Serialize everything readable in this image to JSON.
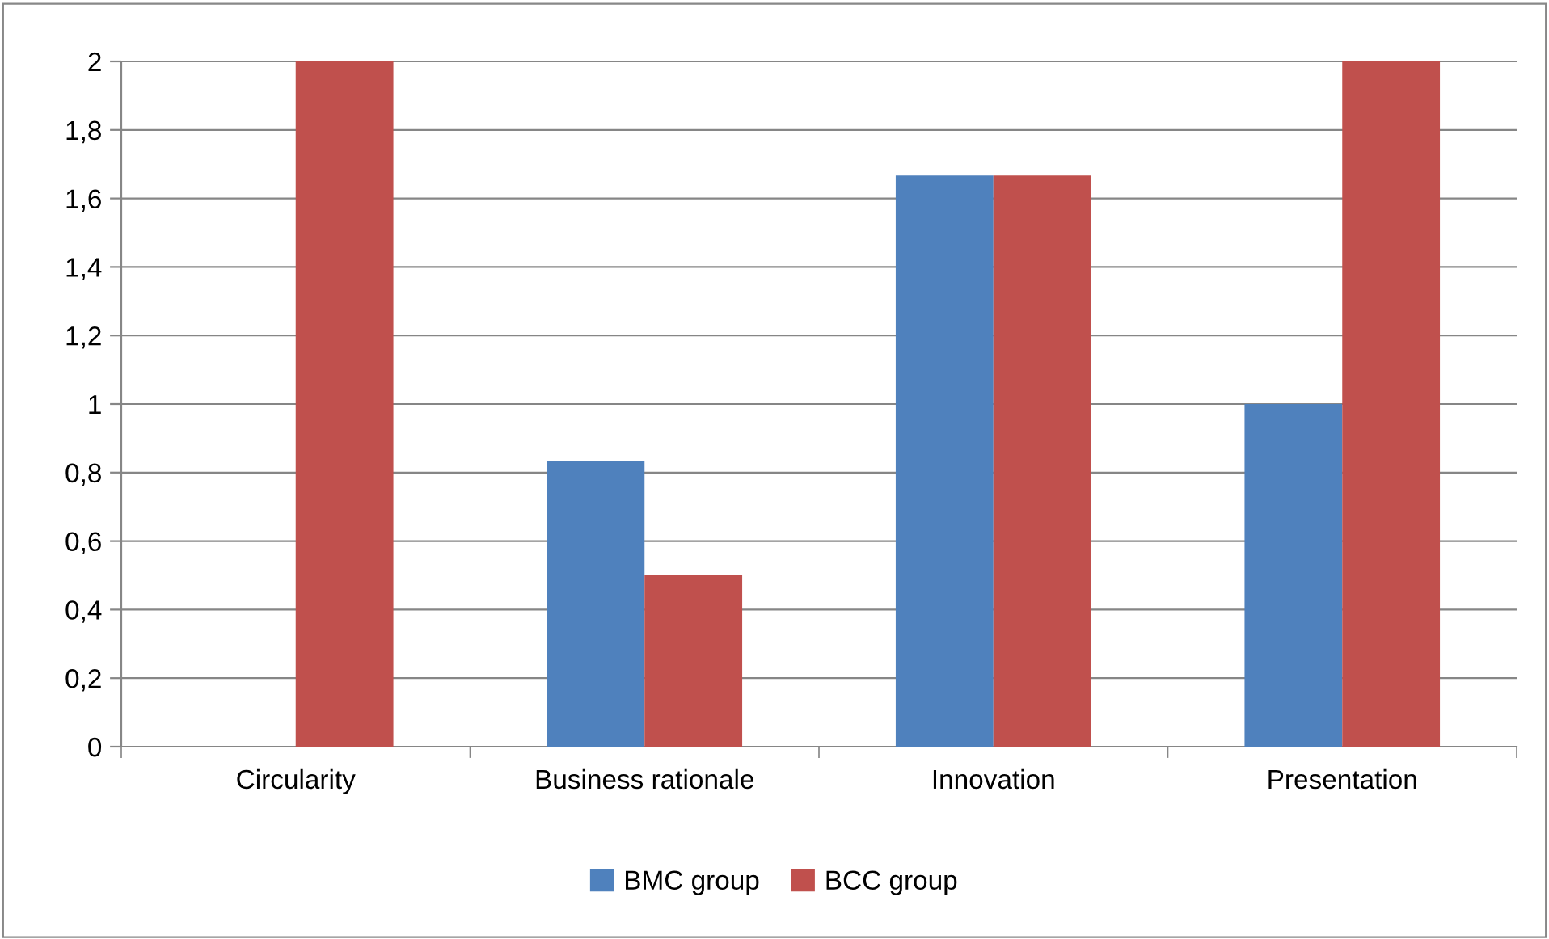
{
  "chart_data": {
    "type": "bar",
    "categories": [
      "Circularity",
      "Business rationale",
      "Innovation",
      "Presentation"
    ],
    "series": [
      {
        "name": "BMC group",
        "color": "#4f81bd",
        "values": [
          0,
          0.833,
          1.667,
          1.0
        ]
      },
      {
        "name": "BCC group",
        "color": "#c0504d",
        "values": [
          2,
          0.5,
          1.667,
          2
        ]
      }
    ],
    "ylim": [
      0,
      2
    ],
    "yticks": [
      0,
      {
        "value": 0.2,
        "label": "0,2"
      },
      {
        "value": 0.4,
        "label": "0,4"
      },
      {
        "value": 0.6,
        "label": "0,6"
      },
      {
        "value": 0.8,
        "label": "0,8"
      },
      1,
      {
        "value": 1.2,
        "label": "1,2"
      },
      {
        "value": 1.4,
        "label": "1,4"
      },
      {
        "value": 1.6,
        "label": "1,6"
      },
      {
        "value": 1.8,
        "label": "1,8"
      },
      2
    ],
    "grid": "y",
    "legend": "bottom"
  }
}
